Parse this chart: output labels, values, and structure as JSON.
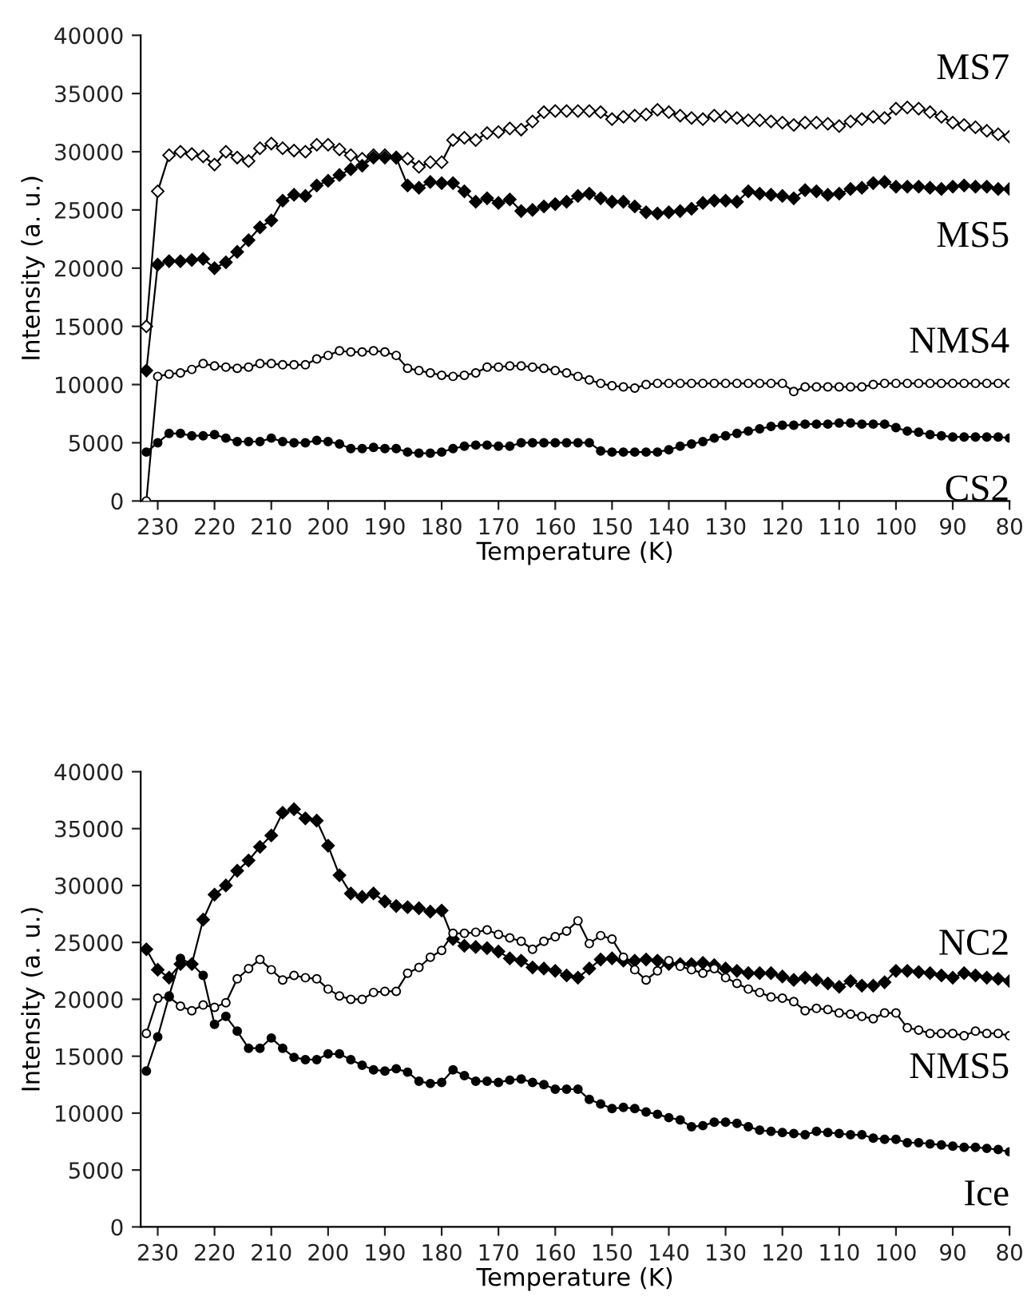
{
  "chart_data": [
    {
      "type": "line",
      "xlabel": "Temperature (K)",
      "ylabel": "Intensity (a. u.)",
      "x": [
        232,
        230,
        228,
        226,
        224,
        222,
        220,
        218,
        216,
        214,
        212,
        210,
        208,
        206,
        204,
        202,
        200,
        198,
        196,
        194,
        192,
        190,
        188,
        186,
        184,
        182,
        180,
        178,
        176,
        174,
        172,
        170,
        168,
        166,
        164,
        162,
        160,
        158,
        156,
        154,
        152,
        150,
        148,
        146,
        144,
        142,
        140,
        138,
        136,
        134,
        132,
        130,
        128,
        126,
        124,
        122,
        120,
        118,
        116,
        114,
        112,
        110,
        108,
        106,
        104,
        102,
        100,
        98,
        96,
        94,
        92,
        90,
        88,
        86,
        84,
        82,
        80
      ],
      "xlim": [
        233,
        80
      ],
      "xticks": [
        230,
        220,
        210,
        200,
        190,
        180,
        170,
        160,
        150,
        140,
        130,
        120,
        110,
        100,
        90,
        80
      ],
      "ylim": [
        0,
        40000
      ],
      "yticks": [
        0,
        5000,
        10000,
        15000,
        20000,
        25000,
        30000,
        35000,
        40000
      ],
      "grid": false,
      "legend": false,
      "line_style": "solid",
      "series": [
        {
          "name": "MS7",
          "color": "#000000",
          "marker": "diamond",
          "values": [
            15000,
            26600,
            29700,
            30000,
            29800,
            29600,
            28900,
            30000,
            29500,
            29200,
            30300,
            30700,
            30300,
            30100,
            30000,
            30600,
            30600,
            30200,
            29700,
            29400,
            29700,
            29700,
            29500,
            29400,
            28700,
            29100,
            29100,
            31000,
            31200,
            31000,
            31600,
            31700,
            32000,
            31900,
            32600,
            33400,
            33500,
            33500,
            33500,
            33500,
            33400,
            32800,
            33000,
            33100,
            33200,
            33600,
            33400,
            33100,
            32900,
            32800,
            33100,
            33000,
            32900,
            32700,
            32700,
            32600,
            32500,
            32300,
            32500,
            32500,
            32400,
            32200,
            32600,
            32800,
            33000,
            32900,
            33700,
            33800,
            33700,
            33400,
            33000,
            32500,
            32300,
            32100,
            31800,
            31500,
            31300
          ]
        },
        {
          "name": "MS5",
          "color": "#000000",
          "marker": "diamond",
          "values": [
            11200,
            20300,
            20600,
            20600,
            20700,
            20800,
            20000,
            20500,
            21400,
            22400,
            23500,
            24100,
            25800,
            26300,
            26200,
            27100,
            27500,
            28000,
            28500,
            28800,
            29500,
            29500,
            29500,
            27100,
            26900,
            27400,
            27300,
            27300,
            26600,
            25700,
            26000,
            25600,
            25900,
            24900,
            25000,
            25300,
            25500,
            25700,
            26200,
            26400,
            26000,
            25700,
            25700,
            25300,
            24800,
            24700,
            24800,
            24900,
            25100,
            25600,
            25800,
            25800,
            25700,
            26600,
            26400,
            26300,
            26200,
            26000,
            26700,
            26600,
            26300,
            26400,
            26800,
            26900,
            27300,
            27400,
            27000,
            27000,
            27000,
            26900,
            26800,
            27000,
            27100,
            27000,
            27000,
            26800,
            26800
          ]
        },
        {
          "name": "NMS4",
          "color": "#000000",
          "marker": "circle",
          "values": [
            0,
            10700,
            10900,
            11000,
            11300,
            11800,
            11600,
            11500,
            11400,
            11500,
            11800,
            11800,
            11700,
            11700,
            11700,
            12200,
            12500,
            12900,
            12800,
            12800,
            12900,
            12800,
            12500,
            11400,
            11200,
            11000,
            10800,
            10700,
            10800,
            11000,
            11500,
            11500,
            11600,
            11600,
            11500,
            11400,
            11200,
            11000,
            10700,
            10400,
            10100,
            9900,
            9800,
            9700,
            10000,
            10100,
            10100,
            10100,
            10100,
            10100,
            10100,
            10100,
            10100,
            10100,
            10100,
            10100,
            10100,
            9400,
            9800,
            9800,
            9800,
            9800,
            9800,
            9800,
            10000,
            10100,
            10100,
            10100,
            10100,
            10100,
            10100,
            10100,
            10100,
            10100,
            10100,
            10100,
            10100
          ]
        },
        {
          "name": "CS2",
          "color": "#000000",
          "marker": "circle",
          "values": [
            4200,
            5000,
            5800,
            5800,
            5600,
            5600,
            5700,
            5400,
            5100,
            5100,
            5100,
            5400,
            5100,
            5000,
            5000,
            5200,
            5100,
            4900,
            4500,
            4500,
            4600,
            4500,
            4500,
            4200,
            4100,
            4100,
            4200,
            4500,
            4700,
            4800,
            4800,
            4700,
            4700,
            5000,
            5000,
            5000,
            5000,
            5000,
            5000,
            5000,
            4300,
            4200,
            4200,
            4200,
            4200,
            4200,
            4400,
            4700,
            4900,
            5100,
            5400,
            5600,
            5800,
            6000,
            6200,
            6400,
            6500,
            6500,
            6600,
            6600,
            6600,
            6700,
            6700,
            6600,
            6600,
            6600,
            6300,
            6000,
            5900,
            5700,
            5600,
            5500,
            5500,
            5500,
            5500,
            5500,
            5400
          ]
        }
      ]
    },
    {
      "type": "line",
      "xlabel": "Temperature (K)",
      "ylabel": "Intensity (a. u.)",
      "x": [
        232,
        230,
        228,
        226,
        224,
        222,
        220,
        218,
        216,
        214,
        212,
        210,
        208,
        206,
        204,
        202,
        200,
        198,
        196,
        194,
        192,
        190,
        188,
        186,
        184,
        182,
        180,
        178,
        176,
        174,
        172,
        170,
        168,
        166,
        164,
        162,
        160,
        158,
        156,
        154,
        152,
        150,
        148,
        146,
        144,
        142,
        140,
        138,
        136,
        134,
        132,
        130,
        128,
        126,
        124,
        122,
        120,
        118,
        116,
        114,
        112,
        110,
        108,
        106,
        104,
        102,
        100,
        98,
        96,
        94,
        92,
        90,
        88,
        86,
        84,
        82,
        80
      ],
      "xlim": [
        233,
        80
      ],
      "xticks": [
        230,
        220,
        210,
        200,
        190,
        180,
        170,
        160,
        150,
        140,
        130,
        120,
        110,
        100,
        90,
        80
      ],
      "ylim": [
        0,
        40000
      ],
      "yticks": [
        0,
        5000,
        10000,
        15000,
        20000,
        25000,
        30000,
        35000,
        40000
      ],
      "grid": false,
      "legend": false,
      "line_style": "solid",
      "series": [
        {
          "name": "NC2",
          "color": "#000000",
          "marker": "diamond",
          "values": [
            24400,
            22600,
            21900,
            23100,
            23100,
            27000,
            29200,
            30000,
            31300,
            32200,
            33400,
            34400,
            36400,
            36700,
            35900,
            35700,
            33500,
            30900,
            29300,
            29000,
            29300,
            28600,
            28200,
            28100,
            28000,
            27700,
            27800,
            25300,
            24700,
            24600,
            24500,
            24200,
            23600,
            23400,
            22800,
            22700,
            22500,
            22100,
            21900,
            22700,
            23500,
            23600,
            23400,
            23400,
            23500,
            23400,
            23100,
            23100,
            23100,
            23200,
            23000,
            22700,
            22500,
            22300,
            22300,
            22300,
            22000,
            21700,
            21900,
            21700,
            21400,
            21100,
            21600,
            21200,
            21200,
            21500,
            22500,
            22500,
            22400,
            22300,
            22100,
            21900,
            22300,
            22100,
            21900,
            21800,
            21600
          ]
        },
        {
          "name": "NMS5",
          "color": "#000000",
          "marker": "circle",
          "values": [
            17000,
            20100,
            20200,
            19400,
            19000,
            19500,
            19300,
            19700,
            21800,
            22700,
            23500,
            22600,
            21700,
            22100,
            21900,
            21800,
            20900,
            20300,
            20000,
            20000,
            20600,
            20700,
            20700,
            22300,
            22800,
            23700,
            24300,
            25800,
            25800,
            25900,
            26100,
            25700,
            25400,
            25100,
            24400,
            25100,
            25500,
            26000,
            26900,
            24900,
            25600,
            25300,
            23700,
            22600,
            21700,
            22500,
            23400,
            22900,
            22600,
            22300,
            22700,
            21900,
            21400,
            20900,
            20600,
            20200,
            20100,
            19800,
            19000,
            19200,
            19100,
            18800,
            18700,
            18500,
            18300,
            18800,
            18800,
            17500,
            17300,
            17000,
            17000,
            17000,
            16800,
            17200,
            17000,
            17000,
            16800
          ]
        },
        {
          "name": "Ice",
          "color": "#000000",
          "marker": "circle",
          "values": [
            13700,
            16700,
            20300,
            23600,
            23100,
            22100,
            17800,
            18500,
            17200,
            15700,
            15700,
            16600,
            15700,
            14900,
            14700,
            14700,
            15200,
            15200,
            14700,
            14200,
            13800,
            13700,
            13900,
            13600,
            12800,
            12600,
            12700,
            13800,
            13300,
            12800,
            12800,
            12700,
            12900,
            13000,
            12700,
            12500,
            12100,
            12100,
            12100,
            11200,
            10800,
            10400,
            10500,
            10400,
            10100,
            9900,
            9600,
            9400,
            8800,
            8900,
            9200,
            9200,
            9100,
            8800,
            8500,
            8400,
            8300,
            8200,
            8100,
            8400,
            8300,
            8200,
            8100,
            8100,
            7800,
            7700,
            7700,
            7400,
            7400,
            7300,
            7200,
            7100,
            7000,
            7000,
            6900,
            6800,
            6600
          ]
        }
      ]
    }
  ]
}
